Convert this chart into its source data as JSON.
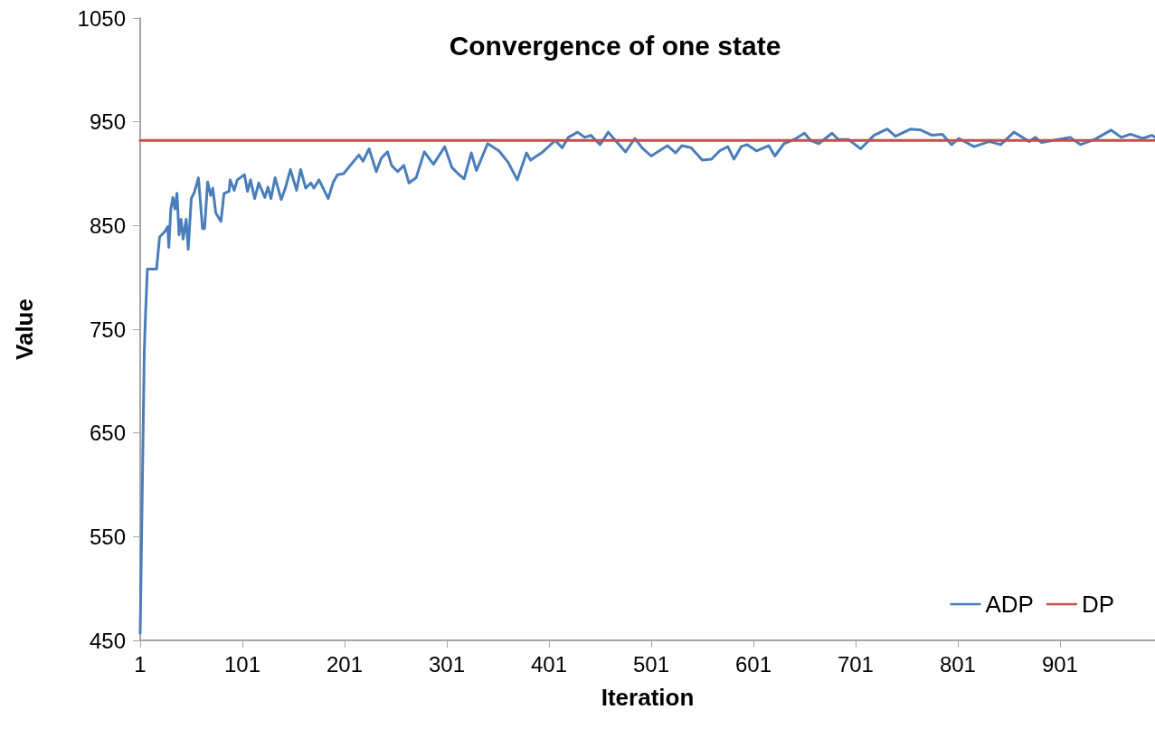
{
  "chart_data": {
    "type": "line",
    "title": "Convergence of one state",
    "xlabel": "Iteration",
    "ylabel": "Value",
    "xlim": [
      1,
      994
    ],
    "xticks": [
      1,
      101,
      201,
      301,
      401,
      501,
      601,
      701,
      801,
      901
    ],
    "ylim": [
      450,
      1050
    ],
    "yticks": [
      450,
      550,
      650,
      750,
      850,
      950,
      1050
    ],
    "grid": false,
    "legend": "bottom right",
    "marker": "none",
    "line_style": "solid",
    "series": [
      {
        "name": "ADP",
        "color": "#4a7ebb",
        "x": [
          1,
          5,
          6,
          8,
          17,
          20,
          25,
          28,
          29,
          31,
          33,
          35,
          37,
          38,
          39,
          41,
          43,
          46,
          48,
          51,
          54,
          58,
          62,
          64,
          67,
          70,
          72,
          75,
          80,
          83,
          88,
          89,
          93,
          96,
          103,
          106,
          109,
          113,
          117,
          123,
          126,
          129,
          133,
          139,
          143,
          148,
          154,
          158,
          163,
          168,
          171,
          176,
          180,
          185,
          190,
          194,
          200,
          215,
          219,
          225,
          232,
          237,
          243,
          247,
          253,
          259,
          264,
          271,
          279,
          288,
          299,
          306,
          312,
          318,
          325,
          330,
          341,
          352,
          361,
          370,
          379,
          383,
          395,
          407,
          414,
          420,
          429,
          436,
          442,
          451,
          459,
          466,
          476,
          485,
          492,
          501,
          509,
          517,
          525,
          531,
          540,
          551,
          560,
          568,
          576,
          582,
          589,
          595,
          604,
          616,
          622,
          631,
          641,
          651,
          657,
          665,
          678,
          684,
          694,
          706,
          719,
          732,
          740,
          755,
          765,
          776,
          786,
          795,
          802,
          817,
          832,
          843,
          856,
          871,
          877,
          883,
          899,
          911,
          921,
          935,
          951,
          961,
          970,
          982,
          991,
          994
        ],
        "values": [
          457,
          728,
          758,
          808,
          808,
          839,
          844,
          849,
          829,
          866,
          877,
          866,
          881,
          862,
          841,
          856,
          837,
          856,
          827,
          876,
          882,
          896,
          847,
          847,
          892,
          879,
          886,
          862,
          854,
          881,
          883,
          894,
          884,
          894,
          899,
          883,
          894,
          876,
          891,
          877,
          887,
          876,
          896,
          875,
          886,
          904,
          884,
          904,
          886,
          891,
          886,
          894,
          886,
          876,
          892,
          899,
          900,
          918,
          912,
          924,
          902,
          915,
          921,
          908,
          902,
          908,
          891,
          896,
          921,
          909,
          926,
          906,
          900,
          895,
          920,
          903,
          929,
          922,
          911,
          894,
          920,
          913,
          921,
          932,
          925,
          935,
          940,
          935,
          937,
          928,
          940,
          932,
          921,
          934,
          925,
          917,
          922,
          927,
          920,
          927,
          925,
          913,
          914,
          922,
          926,
          914,
          926,
          928,
          922,
          927,
          917,
          929,
          933,
          939,
          932,
          929,
          939,
          933,
          933,
          924,
          937,
          943,
          936,
          943,
          942,
          937,
          938,
          928,
          934,
          926,
          931,
          928,
          940,
          931,
          935,
          930,
          933,
          935,
          928,
          933,
          942,
          935,
          938,
          934,
          937,
          935
        ]
      },
      {
        "name": "DP",
        "color": "#c0504d",
        "x": [
          1,
          994
        ],
        "values": [
          932,
          932
        ]
      }
    ]
  }
}
